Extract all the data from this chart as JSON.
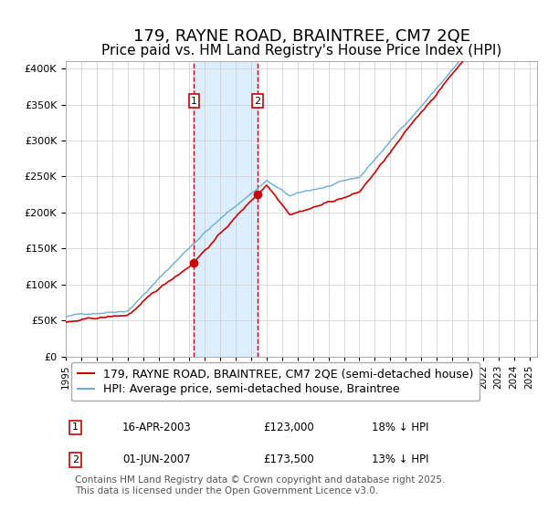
{
  "title": "179, RAYNE ROAD, BRAINTREE, CM7 2QE",
  "subtitle": "Price paid vs. HM Land Registry's House Price Index (HPI)",
  "legend_line1": "179, RAYNE ROAD, BRAINTREE, CM7 2QE (semi-detached house)",
  "legend_line2": "HPI: Average price, semi-detached house, Braintree",
  "transaction1_date": "16-APR-2003",
  "transaction1_price": 123000,
  "transaction1_hpi_diff": "18% ↓ HPI",
  "transaction2_date": "01-JUN-2007",
  "transaction2_price": 173500,
  "transaction2_hpi_diff": "13% ↓ HPI",
  "footer": "Contains HM Land Registry data © Crown copyright and database right 2025.\nThis data is licensed under the Open Government Licence v3.0.",
  "ylim": [
    0,
    400000
  ],
  "hpi_color": "#6baed6",
  "price_color": "#cc0000",
  "shading_color": "#ddeeff",
  "grid_color": "#cccccc",
  "bg_color": "#ffffff",
  "title_fontsize": 13,
  "subtitle_fontsize": 11,
  "axis_fontsize": 9,
  "legend_fontsize": 9,
  "footer_fontsize": 7.5,
  "start_year": 1995,
  "end_year": 2025,
  "transaction1_x": 2003.29,
  "transaction2_x": 2007.42
}
